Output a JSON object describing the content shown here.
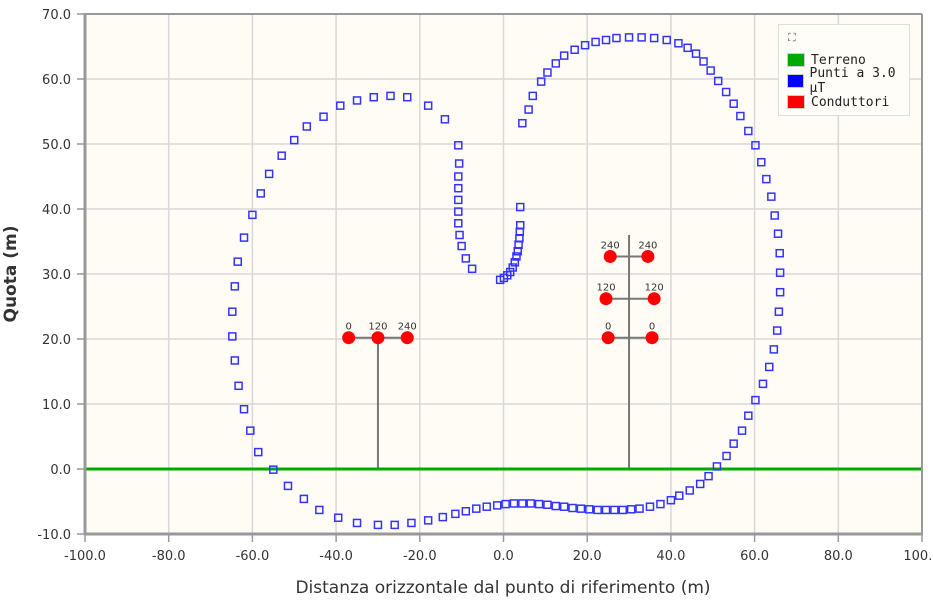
{
  "chart_data": {
    "type": "scatter",
    "title": "",
    "xlabel": "Distanza orizzontale dal punto di riferimento (m)",
    "ylabel": "Quota (m)",
    "xlim": [
      -100,
      100
    ],
    "ylim": [
      -10,
      70
    ],
    "x_ticks": [
      "-100.0",
      "-80.0",
      "-60.0",
      "-40.0",
      "-20.0",
      "0.0",
      "20.0",
      "40.0",
      "60.0",
      "80.0",
      "100.0"
    ],
    "y_ticks": [
      "-10.0",
      "0.0",
      "10.0",
      "20.0",
      "30.0",
      "40.0",
      "50.0",
      "60.0",
      "70.0"
    ],
    "grid": true,
    "legend_position": "top-right",
    "legend": [
      {
        "label": "Terreno",
        "color": "#00aa00"
      },
      {
        "label": "Punti a 3.0 μT",
        "color": "#0000ff"
      },
      {
        "label": "Conduttori",
        "color": "#ff0000"
      }
    ],
    "series": [
      {
        "name": "Terreno",
        "type": "line",
        "color": "#00aa00",
        "points": [
          [
            -100,
            0
          ],
          [
            100,
            0
          ]
        ]
      },
      {
        "name": "Punti a 3.0 μT",
        "type": "scatter",
        "color": "#0000ff",
        "points": [
          [
            4.0,
            40.3
          ],
          [
            4.0,
            37.5
          ],
          [
            3.9,
            36.5
          ],
          [
            3.8,
            35.5
          ],
          [
            3.6,
            34.5
          ],
          [
            3.4,
            33.5
          ],
          [
            3.1,
            32.7
          ],
          [
            2.7,
            31.8
          ],
          [
            2.2,
            31.0
          ],
          [
            1.6,
            30.3
          ],
          [
            0.9,
            29.8
          ],
          [
            0.1,
            29.4
          ],
          [
            -0.8,
            29.1
          ],
          [
            -7.5,
            30.8
          ],
          [
            -9.0,
            32.4
          ],
          [
            -10.0,
            34.3
          ],
          [
            -10.5,
            36.0
          ],
          [
            -10.8,
            37.8
          ],
          [
            -10.8,
            39.6
          ],
          [
            -10.8,
            41.4
          ],
          [
            -10.8,
            43.2
          ],
          [
            -10.8,
            45.0
          ],
          [
            -10.6,
            47.0
          ],
          [
            -10.8,
            49.8
          ],
          [
            -14.0,
            53.8
          ],
          [
            -18.0,
            55.9
          ],
          [
            -23.0,
            57.2
          ],
          [
            -27.0,
            57.4
          ],
          [
            -31.0,
            57.2
          ],
          [
            -35.0,
            56.7
          ],
          [
            -39.0,
            55.9
          ],
          [
            -43.0,
            54.2
          ],
          [
            -47.0,
            52.7
          ],
          [
            -50.0,
            50.6
          ],
          [
            -53.0,
            48.2
          ],
          [
            -56.0,
            45.4
          ],
          [
            -58.0,
            42.4
          ],
          [
            -60.0,
            39.1
          ],
          [
            -62.0,
            35.6
          ],
          [
            -63.5,
            31.9
          ],
          [
            -64.2,
            28.1
          ],
          [
            -64.8,
            24.2
          ],
          [
            -64.8,
            20.4
          ],
          [
            -64.2,
            16.7
          ],
          [
            -63.3,
            12.8
          ],
          [
            -62.0,
            9.2
          ],
          [
            -60.5,
            5.9
          ],
          [
            -58.6,
            2.6
          ],
          [
            -55.0,
            -0.1
          ],
          [
            -51.5,
            -2.6
          ],
          [
            -47.7,
            -4.6
          ],
          [
            -44.0,
            -6.3
          ],
          [
            -39.5,
            -7.5
          ],
          [
            -35.0,
            -8.3
          ],
          [
            -30.0,
            -8.6
          ],
          [
            -26.0,
            -8.6
          ],
          [
            -22.0,
            -8.3
          ],
          [
            -18.0,
            -7.9
          ],
          [
            -14.5,
            -7.4
          ],
          [
            -11.5,
            -6.9
          ],
          [
            -9.0,
            -6.5
          ],
          [
            -6.5,
            -6.1
          ],
          [
            -4.0,
            -5.8
          ],
          [
            -1.5,
            -5.6
          ],
          [
            0.5,
            -5.4
          ],
          [
            2.5,
            -5.3
          ],
          [
            4.5,
            -5.3
          ],
          [
            6.5,
            -5.3
          ],
          [
            8.5,
            -5.4
          ],
          [
            10.5,
            -5.5
          ],
          [
            12.5,
            -5.7
          ],
          [
            14.5,
            -5.8
          ],
          [
            16.5,
            -6.0
          ],
          [
            18.5,
            -6.1
          ],
          [
            20.5,
            -6.2
          ],
          [
            22.5,
            -6.3
          ],
          [
            24.5,
            -6.3
          ],
          [
            26.5,
            -6.3
          ],
          [
            28.5,
            -6.3
          ],
          [
            30.5,
            -6.2
          ],
          [
            32.5,
            -6.1
          ],
          [
            35.0,
            -5.8
          ],
          [
            37.5,
            -5.4
          ],
          [
            40.0,
            -4.8
          ],
          [
            42.0,
            -4.1
          ],
          [
            44.5,
            -3.3
          ],
          [
            47.0,
            -2.3
          ],
          [
            49.0,
            -1.1
          ],
          [
            51.0,
            0.4
          ],
          [
            53.3,
            2.0
          ],
          [
            55.0,
            3.9
          ],
          [
            57.0,
            5.9
          ],
          [
            58.5,
            8.2
          ],
          [
            60.2,
            10.6
          ],
          [
            62.0,
            13.1
          ],
          [
            63.5,
            15.7
          ],
          [
            64.6,
            18.4
          ],
          [
            65.4,
            21.3
          ],
          [
            65.8,
            24.2
          ],
          [
            66.1,
            27.2
          ],
          [
            66.1,
            30.2
          ],
          [
            66.0,
            33.2
          ],
          [
            65.6,
            36.2
          ],
          [
            64.8,
            39.0
          ],
          [
            64.0,
            41.9
          ],
          [
            62.8,
            44.6
          ],
          [
            61.6,
            47.2
          ],
          [
            60.2,
            49.8
          ],
          [
            58.5,
            52.0
          ],
          [
            56.6,
            54.3
          ],
          [
            55.0,
            56.2
          ],
          [
            53.2,
            58.0
          ],
          [
            51.3,
            59.7
          ],
          [
            49.5,
            61.3
          ],
          [
            47.8,
            62.7
          ],
          [
            46.0,
            63.9
          ],
          [
            44.0,
            64.8
          ],
          [
            41.8,
            65.5
          ],
          [
            39.0,
            66.0
          ],
          [
            36.0,
            66.3
          ],
          [
            33.0,
            66.4
          ],
          [
            30.0,
            66.4
          ],
          [
            27.0,
            66.3
          ],
          [
            24.5,
            66.0
          ],
          [
            22.0,
            65.7
          ],
          [
            19.5,
            65.2
          ],
          [
            17.0,
            64.5
          ],
          [
            14.5,
            63.6
          ],
          [
            12.5,
            62.4
          ],
          [
            10.5,
            61.0
          ],
          [
            9.0,
            59.6
          ],
          [
            7.0,
            57.4
          ],
          [
            6.0,
            55.3
          ],
          [
            4.5,
            53.2
          ]
        ]
      },
      {
        "name": "Conduttori",
        "type": "scatter",
        "color": "#ff0000",
        "points": [
          {
            "x": -37.0,
            "y": 20.2,
            "label": "0"
          },
          {
            "x": -30.0,
            "y": 20.2,
            "label": "120"
          },
          {
            "x": -23.0,
            "y": 20.2,
            "label": "240"
          },
          {
            "x": 25.5,
            "y": 32.7,
            "label": "240"
          },
          {
            "x": 34.5,
            "y": 32.7,
            "label": "240"
          },
          {
            "x": 24.5,
            "y": 26.2,
            "label": "120"
          },
          {
            "x": 36.0,
            "y": 26.2,
            "label": "120"
          },
          {
            "x": 25.0,
            "y": 20.2,
            "label": "0"
          },
          {
            "x": 35.5,
            "y": 20.2,
            "label": "0"
          }
        ]
      }
    ],
    "supports": [
      {
        "x": -30.0,
        "y_bottom": 0,
        "y_top": 20.2,
        "arms": [
          [
            -37.0,
            -23.0,
            20.2
          ]
        ]
      },
      {
        "x": 30.0,
        "y_bottom": 0,
        "y_top": 36.0,
        "arms": [
          [
            25.5,
            34.5,
            32.7
          ],
          [
            24.5,
            36.0,
            26.2
          ],
          [
            25.0,
            35.5,
            20.2
          ]
        ]
      }
    ]
  },
  "legend": {
    "expand_icon": "expand-icon",
    "items": [
      {
        "label": "Terreno",
        "color": "#00aa00"
      },
      {
        "label": "Punti a 3.0 μT",
        "color": "#0000ff"
      },
      {
        "label": "Conduttori",
        "color": "#ff0000"
      }
    ]
  },
  "axes": {
    "xlabel": "Distanza orizzontale dal punto di riferimento (m)",
    "ylabel": "Quota (m)"
  }
}
